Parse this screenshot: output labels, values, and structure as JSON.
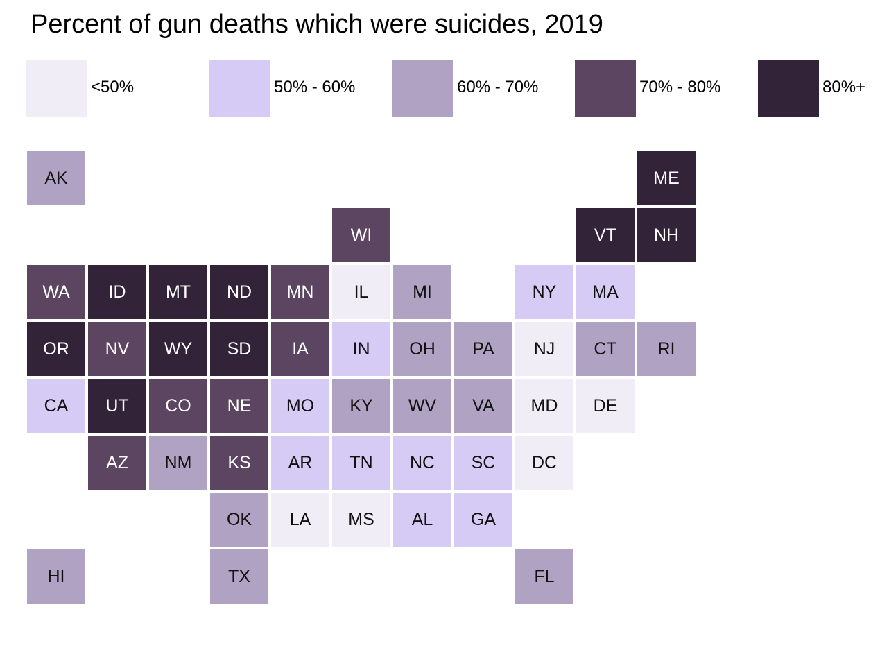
{
  "title": "Percent of gun deaths which were suicides, 2019",
  "legend": [
    {
      "label": "<50%",
      "color": "#f1edf7"
    },
    {
      "label": "50% - 60%",
      "color": "#d6cbf5"
    },
    {
      "label": "60% - 70%",
      "color": "#b0a2c2"
    },
    {
      "label": "70% - 80%",
      "color": "#5c4560"
    },
    {
      "label": "80%+",
      "color": "#332339"
    }
  ],
  "states": [
    {
      "abbr": "AK",
      "bin": 2
    },
    {
      "abbr": "ME",
      "bin": 4
    },
    {
      "abbr": "WI",
      "bin": 3
    },
    {
      "abbr": "VT",
      "bin": 4
    },
    {
      "abbr": "NH",
      "bin": 4
    },
    {
      "abbr": "WA",
      "bin": 3
    },
    {
      "abbr": "ID",
      "bin": 4
    },
    {
      "abbr": "MT",
      "bin": 4
    },
    {
      "abbr": "ND",
      "bin": 4
    },
    {
      "abbr": "MN",
      "bin": 3
    },
    {
      "abbr": "IL",
      "bin": 0
    },
    {
      "abbr": "MI",
      "bin": 2
    },
    {
      "abbr": "NY",
      "bin": 1
    },
    {
      "abbr": "MA",
      "bin": 1
    },
    {
      "abbr": "OR",
      "bin": 4
    },
    {
      "abbr": "NV",
      "bin": 3
    },
    {
      "abbr": "WY",
      "bin": 4
    },
    {
      "abbr": "SD",
      "bin": 4
    },
    {
      "abbr": "IA",
      "bin": 3
    },
    {
      "abbr": "IN",
      "bin": 1
    },
    {
      "abbr": "OH",
      "bin": 2
    },
    {
      "abbr": "PA",
      "bin": 2
    },
    {
      "abbr": "NJ",
      "bin": 0
    },
    {
      "abbr": "CT",
      "bin": 2
    },
    {
      "abbr": "RI",
      "bin": 2
    },
    {
      "abbr": "CA",
      "bin": 1
    },
    {
      "abbr": "UT",
      "bin": 4
    },
    {
      "abbr": "CO",
      "bin": 3
    },
    {
      "abbr": "NE",
      "bin": 3
    },
    {
      "abbr": "MO",
      "bin": 1
    },
    {
      "abbr": "KY",
      "bin": 2
    },
    {
      "abbr": "WV",
      "bin": 2
    },
    {
      "abbr": "VA",
      "bin": 2
    },
    {
      "abbr": "MD",
      "bin": 0
    },
    {
      "abbr": "DE",
      "bin": 0
    },
    {
      "abbr": "AZ",
      "bin": 3
    },
    {
      "abbr": "NM",
      "bin": 2
    },
    {
      "abbr": "KS",
      "bin": 3
    },
    {
      "abbr": "AR",
      "bin": 1
    },
    {
      "abbr": "TN",
      "bin": 1
    },
    {
      "abbr": "NC",
      "bin": 1
    },
    {
      "abbr": "SC",
      "bin": 1
    },
    {
      "abbr": "DC",
      "bin": 0
    },
    {
      "abbr": "OK",
      "bin": 2
    },
    {
      "abbr": "LA",
      "bin": 0
    },
    {
      "abbr": "MS",
      "bin": 0
    },
    {
      "abbr": "AL",
      "bin": 1
    },
    {
      "abbr": "GA",
      "bin": 1
    },
    {
      "abbr": "HI",
      "bin": 2
    },
    {
      "abbr": "TX",
      "bin": 2
    },
    {
      "abbr": "FL",
      "bin": 2
    }
  ]
}
